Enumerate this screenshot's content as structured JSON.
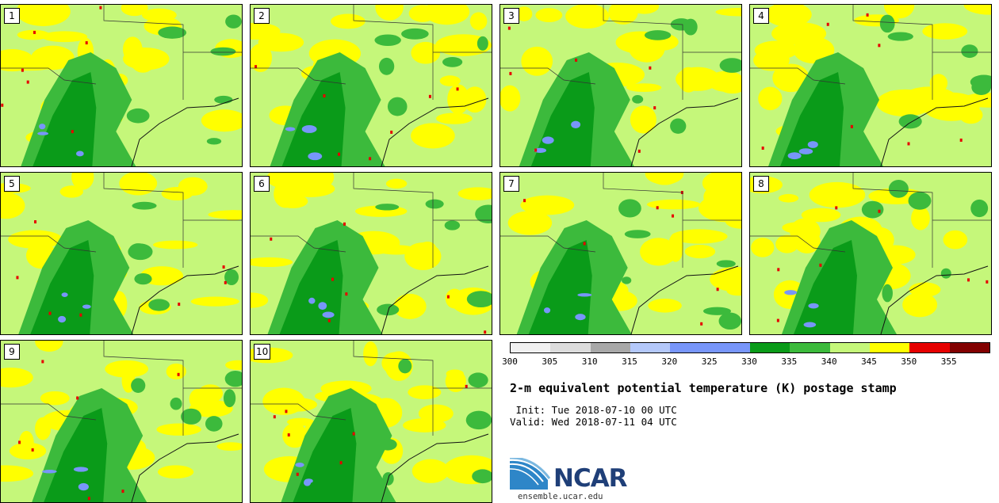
{
  "panels": [
    {
      "label": "1"
    },
    {
      "label": "2"
    },
    {
      "label": "3"
    },
    {
      "label": "4"
    },
    {
      "label": "5"
    },
    {
      "label": "6"
    },
    {
      "label": "7"
    },
    {
      "label": "8"
    },
    {
      "label": "9"
    },
    {
      "label": "10"
    }
  ],
  "colorbar": {
    "colors": [
      "#f0f0f0",
      "#dcdcdc",
      "#a8a8a8",
      "#b4c8fa",
      "#7896fa",
      "#7896fa",
      "#0a9b19",
      "#3cba3c",
      "#c5f77a",
      "#ffff00",
      "#e60000",
      "#820000"
    ],
    "ticks": [
      "300",
      "305",
      "310",
      "315",
      "320",
      "325",
      "330",
      "335",
      "340",
      "345",
      "350",
      "355"
    ]
  },
  "title": "2-m equivalent potential temperature (K) postage stamp",
  "init": " Init: Tue 2018-07-10 00 UTC",
  "valid": "Valid: Wed 2018-07-11 04 UTC",
  "logo": {
    "text": "NCAR",
    "url": "ensemble.ucar.edu"
  },
  "map_colors": {
    "light_green": "#c5f77a",
    "yellow": "#ffff00",
    "mid_green": "#3cba3c",
    "dark_green": "#0a9b19",
    "blue": "#7896fa",
    "red": "#e60000"
  }
}
